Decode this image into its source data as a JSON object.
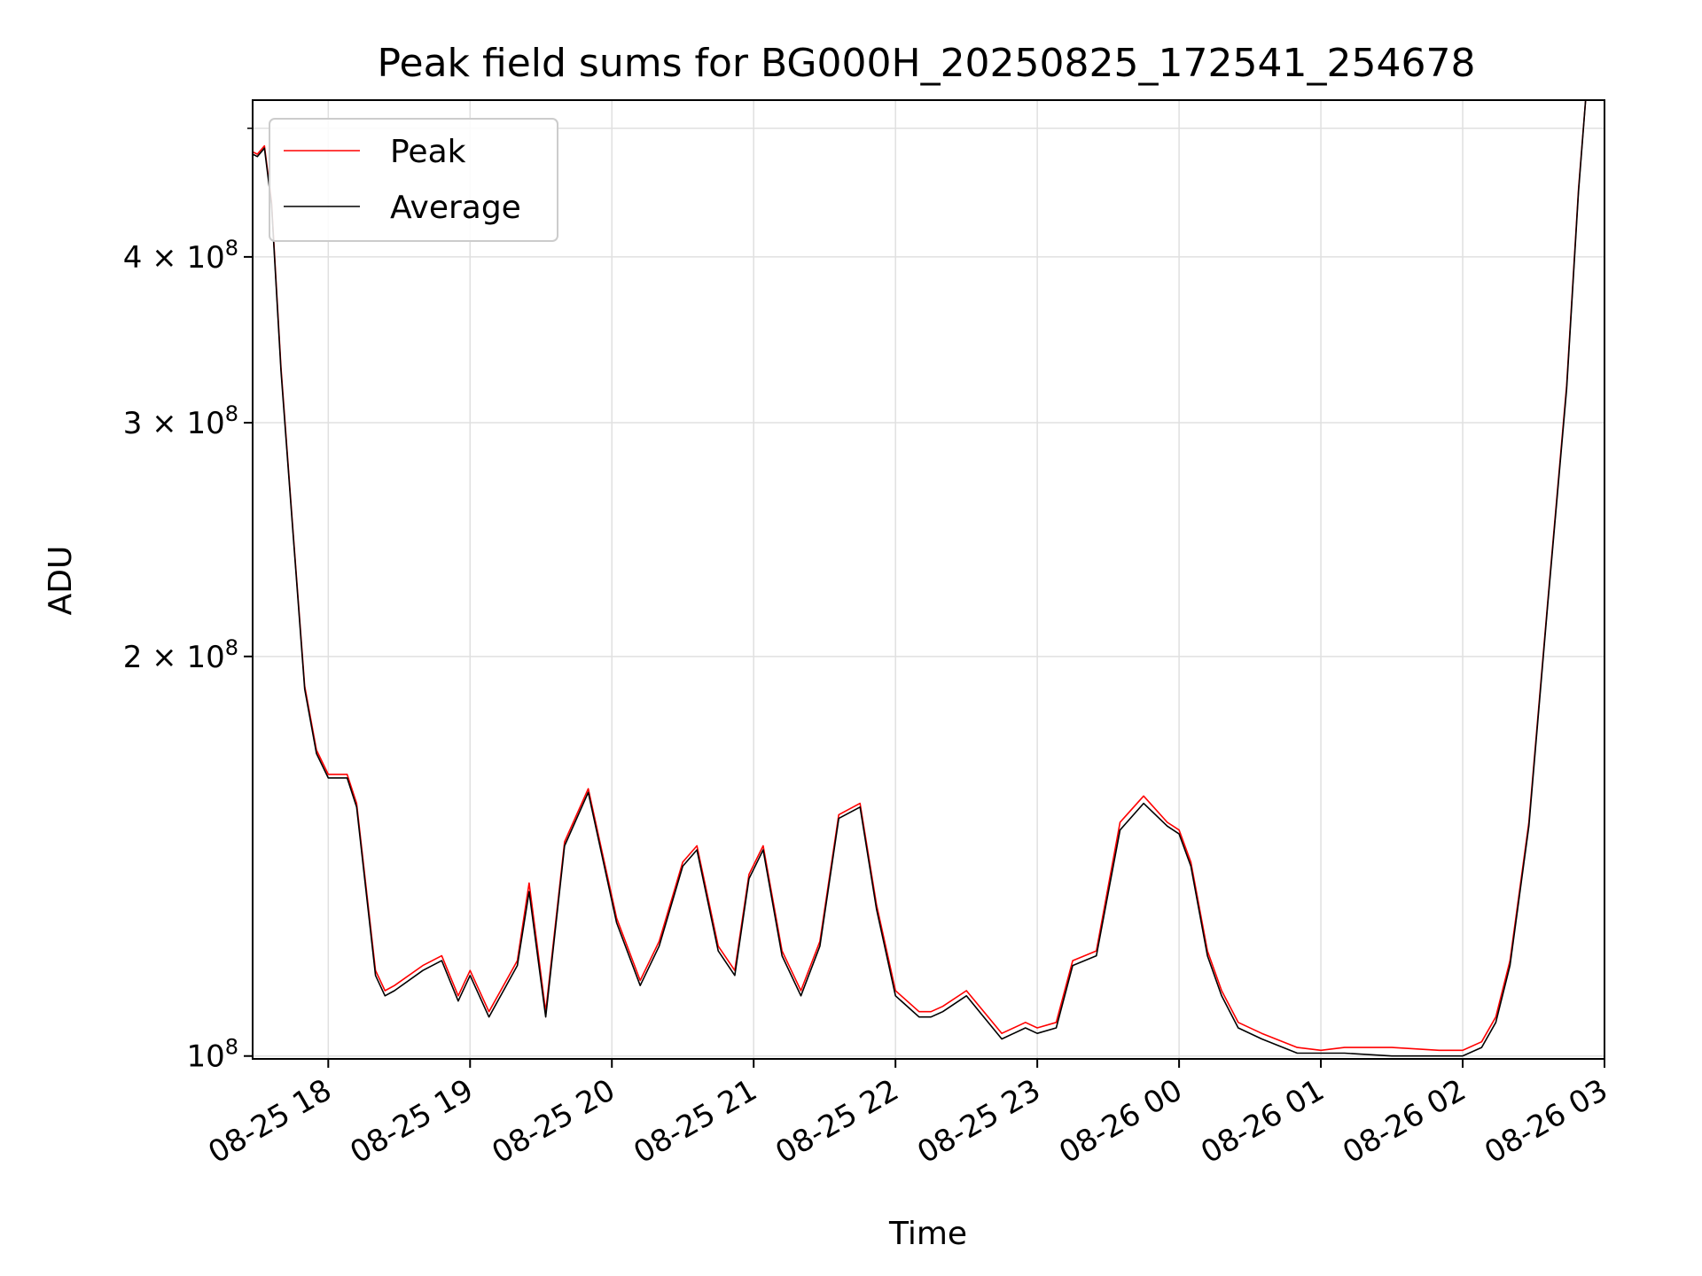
{
  "chart_data": {
    "type": "line",
    "title": "Peak field sums for BG000H_20250825_172541_254678",
    "xlabel": "Time",
    "ylabel": "ADU",
    "yscale": "log",
    "grid": true,
    "legend_position": "upper-left",
    "xlim": [
      "2025-08-25 17:28",
      "2025-08-26 03:00"
    ],
    "ylim": [
      99500000,
      525000000
    ],
    "x_ticks": [
      {
        "value": "2025-08-25 18:00",
        "label": "08-25 18"
      },
      {
        "value": "2025-08-25 19:00",
        "label": "08-25 19"
      },
      {
        "value": "2025-08-25 20:00",
        "label": "08-25 20"
      },
      {
        "value": "2025-08-25 21:00",
        "label": "08-25 21"
      },
      {
        "value": "2025-08-25 22:00",
        "label": "08-25 22"
      },
      {
        "value": "2025-08-25 23:00",
        "label": "08-25 23"
      },
      {
        "value": "2025-08-26 00:00",
        "label": "08-26 00"
      },
      {
        "value": "2025-08-26 01:00",
        "label": "08-26 01"
      },
      {
        "value": "2025-08-26 02:00",
        "label": "08-26 02"
      },
      {
        "value": "2025-08-26 03:00",
        "label": "08-26 03"
      }
    ],
    "y_ticks": [
      {
        "value": 100000000,
        "label": "10",
        "exp": "8"
      },
      {
        "value": 200000000,
        "label": "2 × 10",
        "exp": "8"
      },
      {
        "value": 300000000,
        "label": "3 × 10",
        "exp": "8"
      },
      {
        "value": 400000000,
        "label": "4 × 10",
        "exp": "8"
      }
    ],
    "y_minor_ticks": [
      500000000
    ],
    "colors": {
      "Peak": "#ff0000",
      "Average": "#000000",
      "grid": "#e0e0e0"
    },
    "series": [
      {
        "name": "Peak",
        "x": [
          "2025-08-25 17:28",
          "2025-08-25 17:30",
          "2025-08-25 17:33",
          "2025-08-25 17:36",
          "2025-08-25 17:40",
          "2025-08-25 17:45",
          "2025-08-25 17:50",
          "2025-08-25 17:55",
          "2025-08-25 18:00",
          "2025-08-25 18:08",
          "2025-08-25 18:12",
          "2025-08-25 18:20",
          "2025-08-25 18:24",
          "2025-08-25 18:28",
          "2025-08-25 18:40",
          "2025-08-25 18:48",
          "2025-08-25 18:55",
          "2025-08-25 19:00",
          "2025-08-25 19:08",
          "2025-08-25 19:20",
          "2025-08-25 19:25",
          "2025-08-25 19:32",
          "2025-08-25 19:40",
          "2025-08-25 19:50",
          "2025-08-25 20:02",
          "2025-08-25 20:12",
          "2025-08-25 20:20",
          "2025-08-25 20:30",
          "2025-08-25 20:36",
          "2025-08-25 20:45",
          "2025-08-25 20:52",
          "2025-08-25 20:58",
          "2025-08-25 21:04",
          "2025-08-25 21:12",
          "2025-08-25 21:20",
          "2025-08-25 21:28",
          "2025-08-25 21:36",
          "2025-08-25 21:45",
          "2025-08-25 21:52",
          "2025-08-25 22:00",
          "2025-08-25 22:10",
          "2025-08-25 22:15",
          "2025-08-25 22:20",
          "2025-08-25 22:30",
          "2025-08-25 22:45",
          "2025-08-25 22:55",
          "2025-08-25 23:00",
          "2025-08-25 23:08",
          "2025-08-25 23:15",
          "2025-08-25 23:25",
          "2025-08-25 23:35",
          "2025-08-25 23:45",
          "2025-08-25 23:55",
          "2025-08-26 00:00",
          "2025-08-26 00:05",
          "2025-08-26 00:12",
          "2025-08-26 00:18",
          "2025-08-26 00:25",
          "2025-08-26 00:35",
          "2025-08-26 00:50",
          "2025-08-26 01:00",
          "2025-08-26 01:10",
          "2025-08-26 01:30",
          "2025-08-26 01:50",
          "2025-08-26 02:00",
          "2025-08-26 02:08",
          "2025-08-26 02:14",
          "2025-08-26 02:20",
          "2025-08-26 02:28",
          "2025-08-26 02:36",
          "2025-08-26 02:44",
          "2025-08-26 02:49",
          "2025-08-26 02:52",
          "2025-08-26 02:55",
          "2025-08-26 03:00"
        ],
        "values": [
          480000000,
          478000000,
          485000000,
          440000000,
          330000000,
          250000000,
          190000000,
          170000000,
          163000000,
          163000000,
          155000000,
          116000000,
          112000000,
          113000000,
          117000000,
          119000000,
          111000000,
          116000000,
          108000000,
          118000000,
          135000000,
          108000000,
          145000000,
          159000000,
          127000000,
          114000000,
          122000000,
          140000000,
          144000000,
          121000000,
          116000000,
          137000000,
          144000000,
          120000000,
          112000000,
          122000000,
          152000000,
          155000000,
          130000000,
          112000000,
          108000000,
          108000000,
          109000000,
          112000000,
          104000000,
          106000000,
          105000000,
          106000000,
          118000000,
          120000000,
          150000000,
          157000000,
          150000000,
          148000000,
          140000000,
          120000000,
          112000000,
          106000000,
          104000000,
          101500000,
          101000000,
          101500000,
          101500000,
          101000000,
          101000000,
          102500000,
          107000000,
          118000000,
          150000000,
          220000000,
          320000000,
          450000000,
          525000000,
          525000000,
          525000000
        ]
      },
      {
        "name": "Average",
        "x": [
          "2025-08-25 17:28",
          "2025-08-25 17:30",
          "2025-08-25 17:33",
          "2025-08-25 17:36",
          "2025-08-25 17:40",
          "2025-08-25 17:45",
          "2025-08-25 17:50",
          "2025-08-25 17:55",
          "2025-08-25 18:00",
          "2025-08-25 18:08",
          "2025-08-25 18:12",
          "2025-08-25 18:20",
          "2025-08-25 18:24",
          "2025-08-25 18:28",
          "2025-08-25 18:40",
          "2025-08-25 18:48",
          "2025-08-25 18:55",
          "2025-08-25 19:00",
          "2025-08-25 19:08",
          "2025-08-25 19:20",
          "2025-08-25 19:25",
          "2025-08-25 19:32",
          "2025-08-25 19:40",
          "2025-08-25 19:50",
          "2025-08-25 20:02",
          "2025-08-25 20:12",
          "2025-08-25 20:20",
          "2025-08-25 20:30",
          "2025-08-25 20:36",
          "2025-08-25 20:45",
          "2025-08-25 20:52",
          "2025-08-25 20:58",
          "2025-08-25 21:04",
          "2025-08-25 21:12",
          "2025-08-25 21:20",
          "2025-08-25 21:28",
          "2025-08-25 21:36",
          "2025-08-25 21:45",
          "2025-08-25 21:52",
          "2025-08-25 22:00",
          "2025-08-25 22:10",
          "2025-08-25 22:15",
          "2025-08-25 22:20",
          "2025-08-25 22:30",
          "2025-08-25 22:45",
          "2025-08-25 22:55",
          "2025-08-25 23:00",
          "2025-08-25 23:08",
          "2025-08-25 23:15",
          "2025-08-25 23:25",
          "2025-08-25 23:35",
          "2025-08-25 23:45",
          "2025-08-25 23:55",
          "2025-08-26 00:00",
          "2025-08-26 00:05",
          "2025-08-26 00:12",
          "2025-08-26 00:18",
          "2025-08-26 00:25",
          "2025-08-26 00:35",
          "2025-08-26 00:50",
          "2025-08-26 01:00",
          "2025-08-26 01:10",
          "2025-08-26 01:30",
          "2025-08-26 01:50",
          "2025-08-26 02:00",
          "2025-08-26 02:08",
          "2025-08-26 02:14",
          "2025-08-26 02:20",
          "2025-08-26 02:28",
          "2025-08-26 02:36",
          "2025-08-26 02:44",
          "2025-08-26 02:49",
          "2025-08-26 02:52",
          "2025-08-26 02:55",
          "2025-08-26 03:00"
        ],
        "values": [
          478000000,
          476000000,
          483000000,
          438000000,
          328000000,
          249000000,
          189000000,
          169000000,
          162000000,
          162000000,
          154000000,
          115000000,
          111000000,
          112000000,
          116000000,
          118000000,
          110000000,
          115000000,
          107000000,
          117000000,
          133000000,
          107000000,
          144000000,
          158000000,
          126000000,
          113000000,
          121000000,
          139000000,
          143000000,
          120000000,
          115000000,
          136000000,
          143000000,
          119000000,
          111000000,
          121000000,
          151000000,
          154000000,
          129000000,
          111000000,
          107000000,
          107000000,
          108000000,
          111000000,
          103000000,
          105000000,
          104000000,
          105000000,
          117000000,
          119000000,
          148000000,
          155000000,
          149000000,
          147000000,
          139000000,
          119000000,
          111000000,
          105000000,
          103000000,
          100500000,
          100500000,
          100500000,
          100000000,
          100000000,
          100000000,
          101500000,
          106000000,
          117000000,
          149000000,
          219000000,
          318000000,
          448000000,
          525000000,
          525000000,
          525000000
        ]
      }
    ]
  }
}
